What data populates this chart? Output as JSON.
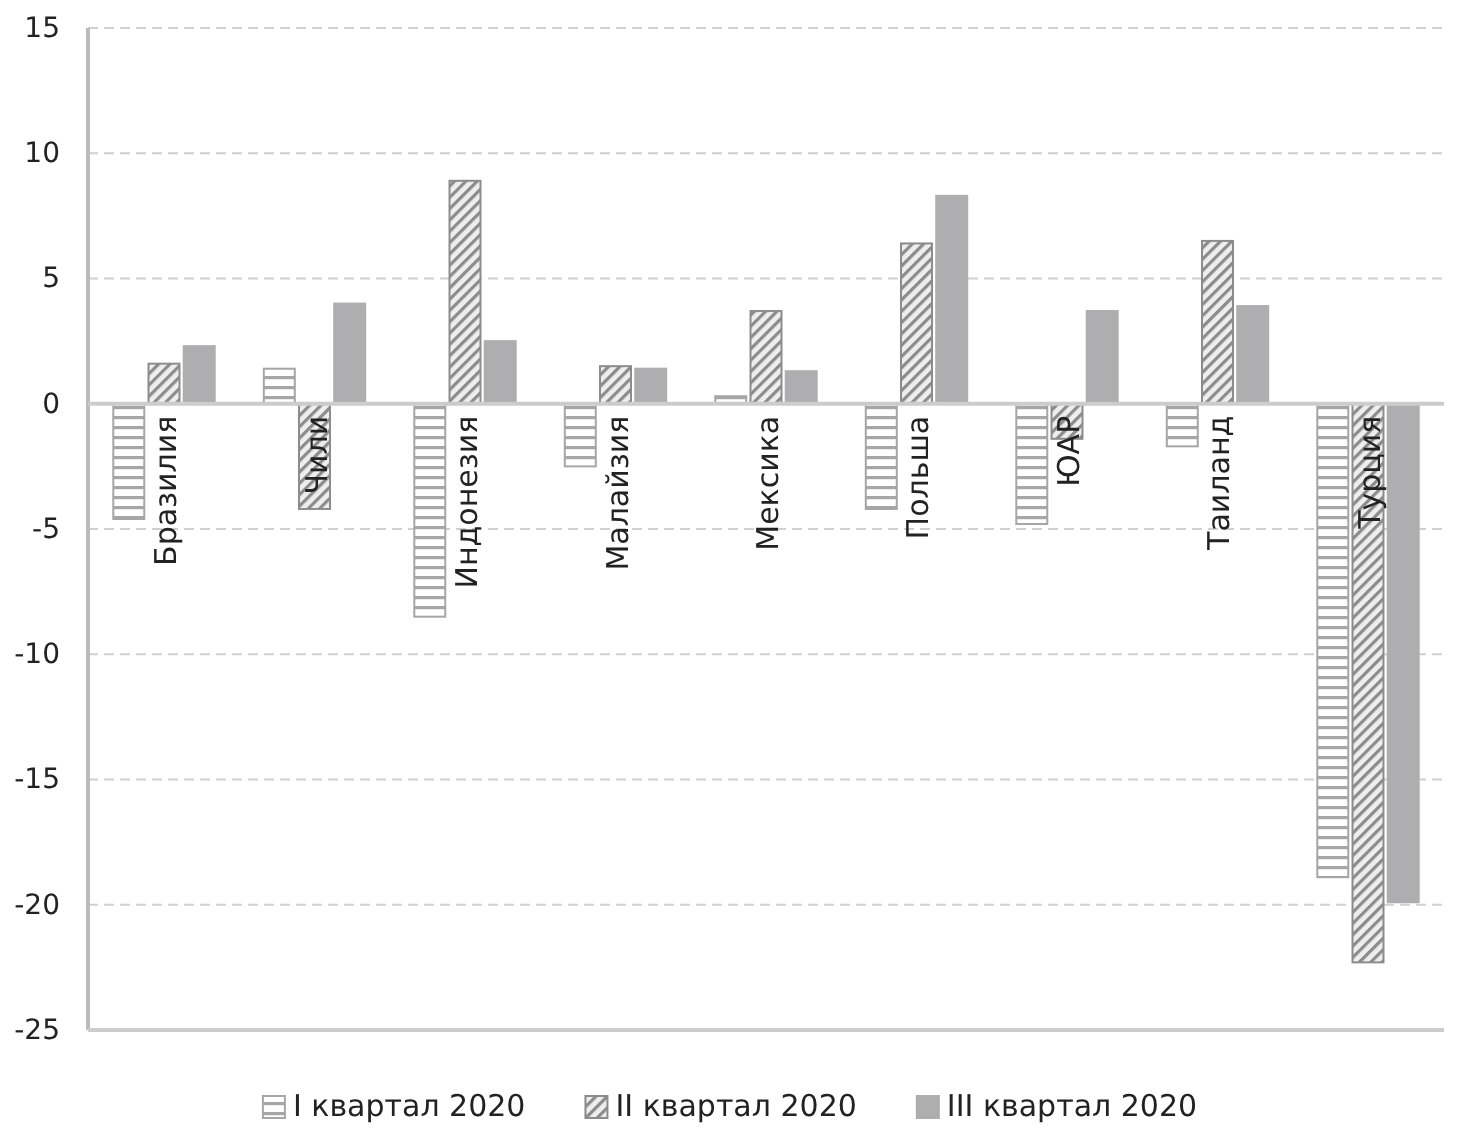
{
  "chart_data": {
    "type": "bar",
    "categories": [
      "Бразилия",
      "Чили",
      "Индонезия",
      "Малайзия",
      "Мексика",
      "Польша",
      "ЮАР",
      "Таиланд",
      "Турция"
    ],
    "series": [
      {
        "name": "I квартал 2020",
        "color": "#a6a6a6",
        "values": [
          -4.6,
          1.4,
          -8.5,
          -2.5,
          0.3,
          -4.2,
          -4.8,
          -1.7,
          -18.9
        ]
      },
      {
        "name": "II квартал 2020",
        "color": "#8c8c8c",
        "values": [
          1.6,
          -4.2,
          8.9,
          1.5,
          3.7,
          6.4,
          -1.4,
          6.5,
          -22.3
        ]
      },
      {
        "name": "III квартал 2020",
        "color": "#aeaeb0",
        "values": [
          2.3,
          4.0,
          2.5,
          1.4,
          1.3,
          8.3,
          3.7,
          3.9,
          -19.9
        ]
      }
    ],
    "ylim": [
      -25,
      15
    ],
    "yticks": [
      -25,
      -20,
      -15,
      -10,
      -5,
      0,
      5,
      10,
      15
    ],
    "grid": "y",
    "legend": "bottom"
  }
}
